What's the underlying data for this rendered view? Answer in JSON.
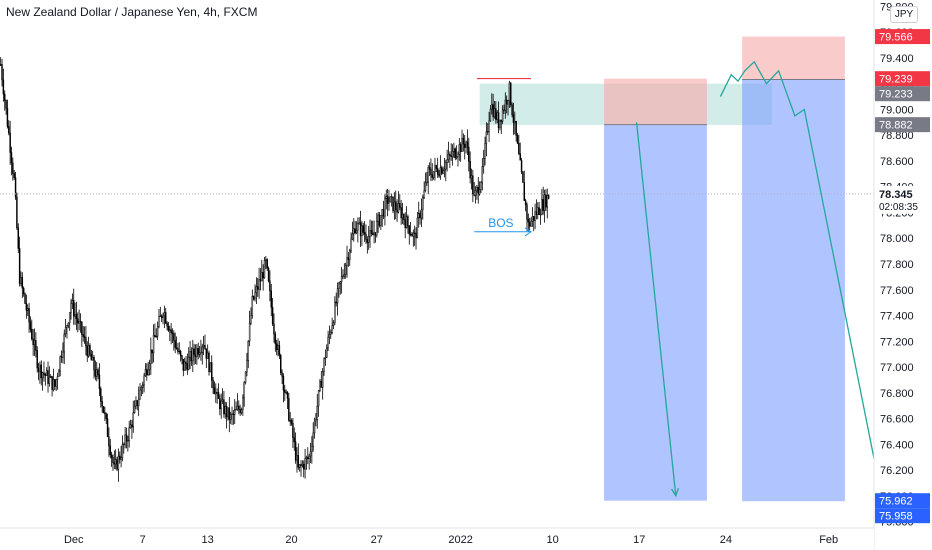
{
  "chart_data": {
    "type": "candlestick",
    "title": "New Zealand Dollar / Japanese Yen, 4h, FXCM",
    "currency": "JPY",
    "ylim": [
      75.75,
      79.85
    ],
    "y_ticks": [
      "75.800",
      "76.000",
      "76.200",
      "76.400",
      "76.600",
      "76.800",
      "77.000",
      "77.200",
      "77.400",
      "77.600",
      "77.800",
      "78.000",
      "78.200",
      "78.400",
      "78.600",
      "78.800",
      "79.000",
      "79.200",
      "79.400",
      "79.600",
      "79.800"
    ],
    "x_ticks": [
      {
        "label": "Dec",
        "bar": 54
      },
      {
        "label": "7",
        "bar": 105
      },
      {
        "label": "13",
        "bar": 153
      },
      {
        "label": "20",
        "bar": 215
      },
      {
        "label": "27",
        "bar": 278
      },
      {
        "label": "2022",
        "bar": 340
      },
      {
        "label": "10",
        "bar": 408
      },
      {
        "label": "17",
        "bar": 472
      },
      {
        "label": "24",
        "bar": 536
      },
      {
        "label": "Feb",
        "bar": 612
      }
    ],
    "bars_visible": 406,
    "future_bars": 240,
    "last_price": {
      "value": 78.345,
      "label": "78.345",
      "countdown": "02:08:35"
    },
    "price_labels": [
      {
        "value": 79.566,
        "label": "79.566",
        "color": "#f23645"
      },
      {
        "value": 79.239,
        "label": "79.239",
        "color": "#f23645"
      },
      {
        "value": 79.233,
        "label": "79.233",
        "color": "#787b86"
      },
      {
        "value": 78.882,
        "label": "78.882",
        "color": "#787b86"
      },
      {
        "value": 75.962,
        "label": "75.962",
        "color": "#2962ff"
      },
      {
        "value": 75.958,
        "label": "75.958",
        "color": "#2962ff"
      }
    ],
    "path_points": [
      {
        "bar": 0,
        "value": 79.35
      },
      {
        "bar": 10,
        "value": 78.45
      },
      {
        "bar": 14,
        "value": 77.7
      },
      {
        "bar": 28,
        "value": 77.0
      },
      {
        "bar": 40,
        "value": 76.85
      },
      {
        "bar": 52,
        "value": 77.5
      },
      {
        "bar": 62,
        "value": 77.2
      },
      {
        "bar": 72,
        "value": 76.9
      },
      {
        "bar": 84,
        "value": 76.2
      },
      {
        "bar": 95,
        "value": 76.5
      },
      {
        "bar": 108,
        "value": 77.0
      },
      {
        "bar": 120,
        "value": 77.45
      },
      {
        "bar": 135,
        "value": 77.0
      },
      {
        "bar": 150,
        "value": 77.2
      },
      {
        "bar": 160,
        "value": 76.75
      },
      {
        "bar": 170,
        "value": 76.6
      },
      {
        "bar": 178,
        "value": 76.7
      },
      {
        "bar": 186,
        "value": 77.5
      },
      {
        "bar": 196,
        "value": 77.8
      },
      {
        "bar": 202,
        "value": 77.3
      },
      {
        "bar": 212,
        "value": 76.7
      },
      {
        "bar": 220,
        "value": 76.2
      },
      {
        "bar": 228,
        "value": 76.3
      },
      {
        "bar": 240,
        "value": 77.1
      },
      {
        "bar": 250,
        "value": 77.6
      },
      {
        "bar": 262,
        "value": 78.1
      },
      {
        "bar": 274,
        "value": 78.0
      },
      {
        "bar": 286,
        "value": 78.3
      },
      {
        "bar": 296,
        "value": 78.2
      },
      {
        "bar": 306,
        "value": 78.0
      },
      {
        "bar": 316,
        "value": 78.5
      },
      {
        "bar": 326,
        "value": 78.55
      },
      {
        "bar": 338,
        "value": 78.7
      },
      {
        "bar": 344,
        "value": 78.75
      },
      {
        "bar": 350,
        "value": 78.3
      },
      {
        "bar": 356,
        "value": 78.5
      },
      {
        "bar": 362,
        "value": 79.05
      },
      {
        "bar": 368,
        "value": 78.9
      },
      {
        "bar": 376,
        "value": 79.15
      },
      {
        "bar": 382,
        "value": 78.7
      },
      {
        "bar": 386,
        "value": 78.4
      },
      {
        "bar": 390,
        "value": 78.1
      },
      {
        "bar": 396,
        "value": 78.2
      },
      {
        "bar": 406,
        "value": 78.345
      }
    ],
    "candle_colors": {
      "up": "#ffffff",
      "down": "#000000",
      "wick": "#000000"
    },
    "annotations": {
      "resistance_line": {
        "bar_start": 352,
        "bar_end": 392,
        "value": 79.24,
        "color": "#f23645"
      },
      "supply_zone": {
        "bar_start": 354,
        "bar_end": 570,
        "top": 79.2,
        "bottom": 78.88,
        "color": "#b2dfdb"
      },
      "bos": {
        "label": "BOS",
        "bar_start": 350,
        "bar_end": 392,
        "value": 78.05,
        "color": "#2196f3"
      },
      "positions": [
        {
          "bar_start": 446,
          "bar_end": 522,
          "entry": 78.882,
          "stop": 79.239,
          "target": 75.962
        },
        {
          "bar_start": 548,
          "bar_end": 624,
          "entry": 79.233,
          "stop": 79.566,
          "target": 75.958
        }
      ],
      "arrow_paths": [
        [
          {
            "bar": 470,
            "value": 78.9
          },
          {
            "bar": 499,
            "value": 76.0
          }
        ],
        [
          {
            "bar": 532,
            "value": 79.1
          },
          {
            "bar": 540,
            "value": 79.27
          },
          {
            "bar": 545,
            "value": 79.22
          },
          {
            "bar": 550,
            "value": 79.3
          },
          {
            "bar": 557,
            "value": 79.37
          },
          {
            "bar": 566,
            "value": 79.2
          },
          {
            "bar": 575,
            "value": 79.3
          },
          {
            "bar": 587,
            "value": 78.95
          },
          {
            "bar": 594,
            "value": 79.0
          },
          {
            "bar": 651,
            "value": 76.0
          }
        ]
      ]
    }
  }
}
